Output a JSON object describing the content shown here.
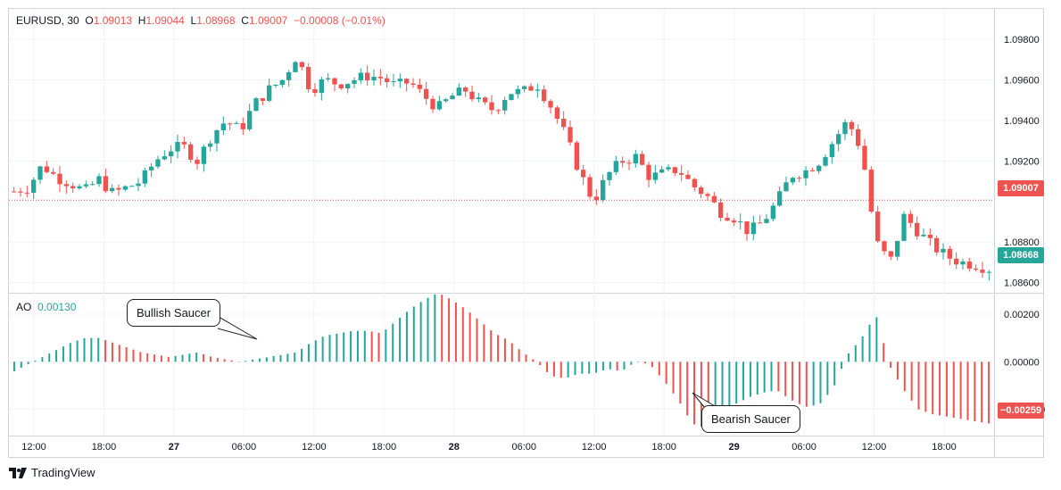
{
  "header": {
    "symbol": "EURUSD",
    "interval": "30",
    "open_label": "O",
    "open": "1.09013",
    "high_label": "H",
    "high": "1.09044",
    "low_label": "L",
    "low": "1.08968",
    "close_label": "C",
    "close": "1.09007",
    "change": "−0.00008 (−0.01%)"
  },
  "ao_header": {
    "name": "AO",
    "value": "0.00130"
  },
  "annotations": {
    "bullish": "Bullish Saucer",
    "bearish": "Bearish Saucer"
  },
  "price_labels": {
    "last": "1.09007",
    "current": "1.08668",
    "ao_last": "−0.00259"
  },
  "brand": "TradingView",
  "colors": {
    "up": "#26a69a",
    "down": "#ef5350",
    "grid": "#f0f3fa",
    "axis_text": "#131722",
    "dotted_line": "#ef5350"
  },
  "chart_data": [
    {
      "type": "candlestick",
      "title": "EURUSD, 30",
      "y_ticks": [
        "1.09800",
        "1.09600",
        "1.09400",
        "1.09200",
        "1.08800",
        "1.08600"
      ],
      "ylim": [
        1.0855,
        1.0995
      ],
      "x_ticks": [
        "12:00",
        "18:00",
        "27",
        "06:00",
        "12:00",
        "18:00",
        "28",
        "06:00",
        "12:00",
        "18:00",
        "29",
        "06:00",
        "12:00",
        "18:00"
      ],
      "reference_line": 1.09007,
      "close_path": [
        1.0905,
        1.0907,
        1.0918,
        1.0912,
        1.0909,
        1.0905,
        1.0911,
        1.0904,
        1.0907,
        1.091,
        1.092,
        1.0926,
        1.0927,
        1.092,
        1.0933,
        1.094,
        1.0935,
        1.0948,
        1.0955,
        1.096,
        1.0972,
        1.0955,
        1.096,
        1.0958,
        1.096,
        1.0962,
        1.0961,
        1.0957,
        1.0959,
        1.0952,
        1.0946,
        1.0952,
        1.0955,
        1.0948,
        1.0945,
        1.0954,
        1.0954,
        1.0958,
        1.0947,
        1.0933,
        1.0915,
        1.09,
        1.0913,
        1.092,
        1.0922,
        1.0912,
        1.0914,
        1.0916,
        1.0908,
        1.0903,
        1.0895,
        1.0892,
        1.0885,
        1.089,
        1.09,
        1.0913,
        1.0915,
        1.092,
        1.093,
        1.094,
        1.0925,
        1.088,
        1.087,
        1.0893,
        1.0885,
        1.0878,
        1.0873,
        1.087,
        1.0869,
        1.08668
      ]
    },
    {
      "type": "bar",
      "title": "AO",
      "y_ticks": [
        "0.00200",
        "0.00000",
        "−0.00200"
      ],
      "ylim": [
        -0.0031,
        0.0029
      ],
      "series": [
        {
          "values": [
            -0.0004,
            -0.0001,
            0.0002,
            0.0005,
            0.0008,
            0.001,
            0.001,
            0.0008,
            0.0006,
            0.0004,
            0.0003,
            0.0002,
            0.0003,
            0.0004,
            0.0002,
            0.0001,
            0.0,
            0.0001,
            0.0002,
            0.0003,
            0.0004,
            0.0008,
            0.0011,
            0.0012,
            0.0013,
            0.0013,
            0.0012,
            0.0017,
            0.0022,
            0.0026,
            0.0029,
            0.0026,
            0.0022,
            0.0017,
            0.0012,
            0.0009,
            0.0004,
            0.0,
            -0.0006,
            -0.0007,
            -0.0005,
            -0.0005,
            -0.0003,
            -0.0004,
            0.0,
            -0.0001,
            -0.0008,
            -0.0016,
            -0.0026,
            -0.0028,
            -0.0024,
            -0.0018,
            -0.0015,
            -0.0013,
            -0.0012,
            -0.0016,
            -0.0019,
            -0.0018,
            -0.0011,
            0.0003,
            0.001,
            0.002,
            -0.0002,
            -0.0012,
            -0.002,
            -0.0022,
            -0.0023,
            -0.0024,
            -0.0025,
            -0.00259
          ]
        }
      ]
    }
  ]
}
